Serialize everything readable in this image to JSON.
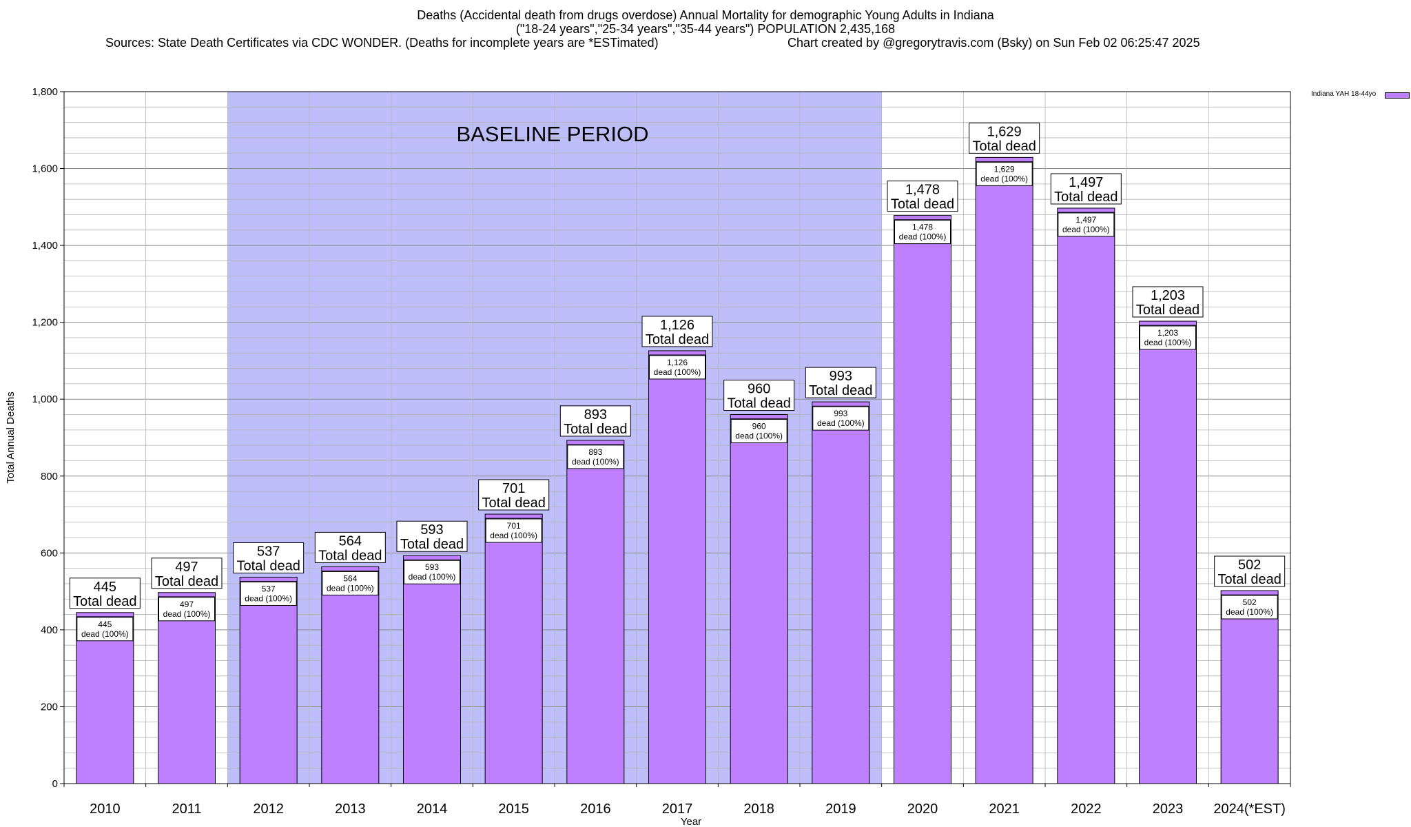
{
  "chart_data": {
    "type": "bar",
    "title_lines": [
      "Deaths (Accidental death from drugs overdose) Annual Mortality for demographic Young Adults in Indiana",
      "(\"18-24 years\",\"25-34 years\",\"35-44 years\") POPULATION 2,435,168"
    ],
    "source_text": "Sources: State Death Certificates via CDC WONDER. (Deaths for incomplete years are *ESTimated)",
    "credit_text": "Chart created by @gregorytravis.com (Bsky) on Sun Feb 02 06:25:47 2025",
    "xlabel": "Year",
    "ylabel": "Total Annual Deaths",
    "categories": [
      "2010",
      "2011",
      "2012",
      "2013",
      "2014",
      "2015",
      "2016",
      "2017",
      "2018",
      "2019",
      "2020",
      "2021",
      "2022",
      "2023",
      "2024(*EST)"
    ],
    "values": [
      445,
      497,
      537,
      564,
      593,
      701,
      893,
      1126,
      960,
      993,
      1478,
      1629,
      1497,
      1203,
      502
    ],
    "value_labels": [
      "445",
      "497",
      "537",
      "564",
      "593",
      "701",
      "893",
      "1,126",
      "960",
      "993",
      "1,478",
      "1,629",
      "1,497",
      "1,203",
      "502"
    ],
    "total_label_suffix": "Total dead",
    "inner_label_suffix": "dead (100%)",
    "ylim": [
      0,
      1800
    ],
    "yticks": [
      0,
      200,
      400,
      600,
      800,
      1000,
      1200,
      1400,
      1600,
      1800
    ],
    "ytick_labels": [
      "0",
      "200",
      "400",
      "600",
      "800",
      "1,000",
      "1,200",
      "1,400",
      "1,600",
      "1,800"
    ],
    "grid": true,
    "legend": {
      "label": "Indiana YAH 18-44yo",
      "placement": "top-right"
    },
    "series": [
      {
        "name": "Indiana YAH 18-44yo",
        "values": [
          445,
          497,
          537,
          564,
          593,
          701,
          893,
          1126,
          960,
          993,
          1478,
          1629,
          1497,
          1203,
          502
        ]
      }
    ],
    "baseline": {
      "label": "BASELINE PERIOD",
      "start": "2012",
      "end": "2019"
    },
    "colors": {
      "bar": "#bf80ff",
      "baseline_band": "#bebefa",
      "grid": "#a0a0a0"
    }
  }
}
